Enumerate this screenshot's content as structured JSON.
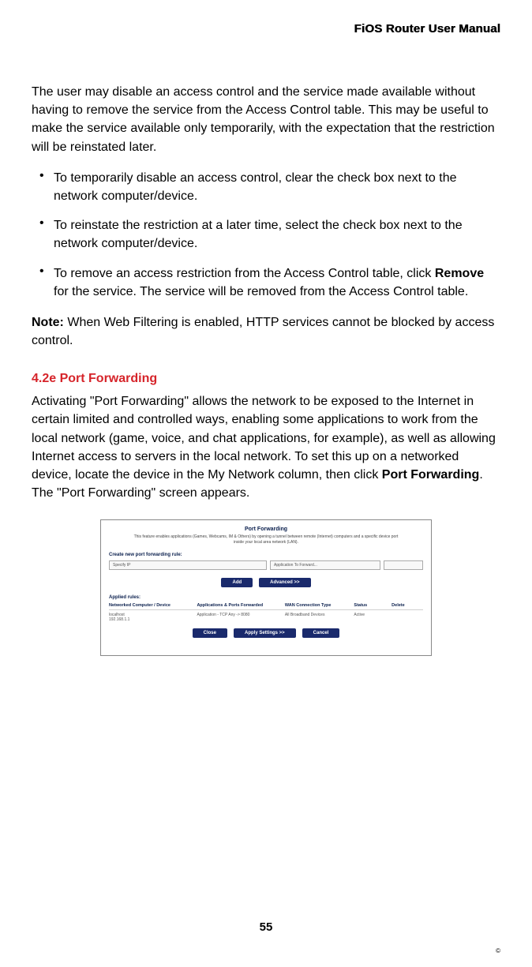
{
  "header": {
    "title": "FiOS Router User Manual"
  },
  "para1": "The user may disable an access control and the service made available without having to remove the service from the Access Control table. This may be useful to make the service available only temporarily, with the expectation that the restriction will be reinstated later.",
  "bullets": [
    "To temporarily disable an access control, clear the check box next to the network computer/device.",
    "To reinstate the restriction at a later time, select the check box next to the network computer/device."
  ],
  "bullet3_pre": "To remove an access restriction from the Access Control table, click ",
  "bullet3_bold": "Remove",
  "bullet3_post": " for the service. The service will be removed from the Access Control table.",
  "note_label": "Note:",
  "note_text": " When Web Filtering is enabled, HTTP services cannot be blocked by access control.",
  "section": {
    "number": "4.2e",
    "name": "  Port Forwarding"
  },
  "pf_para_pre": "Activating \"Port Forwarding\" allows the network to be exposed to the Internet in certain limited and controlled ways, enabling some applications to work from the local network (game, voice, and chat applications, for example), as well as allowing Internet access to servers in the local network. To set this up on a networked device, locate the device in the My Network column, then click ",
  "pf_para_bold": "Port Forwarding",
  "pf_para_post": ". The \"Port Forwarding\" screen appears.",
  "screenshot": {
    "title": "Port Forwarding",
    "desc": "This feature enables applications (Games, Webcams, IM & Others) by opening a tunnel between remote (Internet) computers and a specific device port inside your local area network (LAN).",
    "create_label": "Create new port forwarding rule:",
    "dropdown1": "Specify IP",
    "dropdown2": "Application To Forward...",
    "buttons1": [
      "Add",
      "Advanced >>"
    ],
    "applied_label": "Applied rules:",
    "columns": [
      "Networked Computer / Device",
      "Applications & Ports Forwarded",
      "WAN Connection Type",
      "Status",
      "Delete"
    ],
    "row": [
      "localhost",
      "Application - TCP Any -> 8080",
      "All Broadband Devices",
      "Active",
      ""
    ],
    "row_sub": "192.168.1.1",
    "buttons2": [
      "Close",
      "Apply Settings >>",
      "Cancel"
    ]
  },
  "page_number": "55",
  "copyright": "©"
}
